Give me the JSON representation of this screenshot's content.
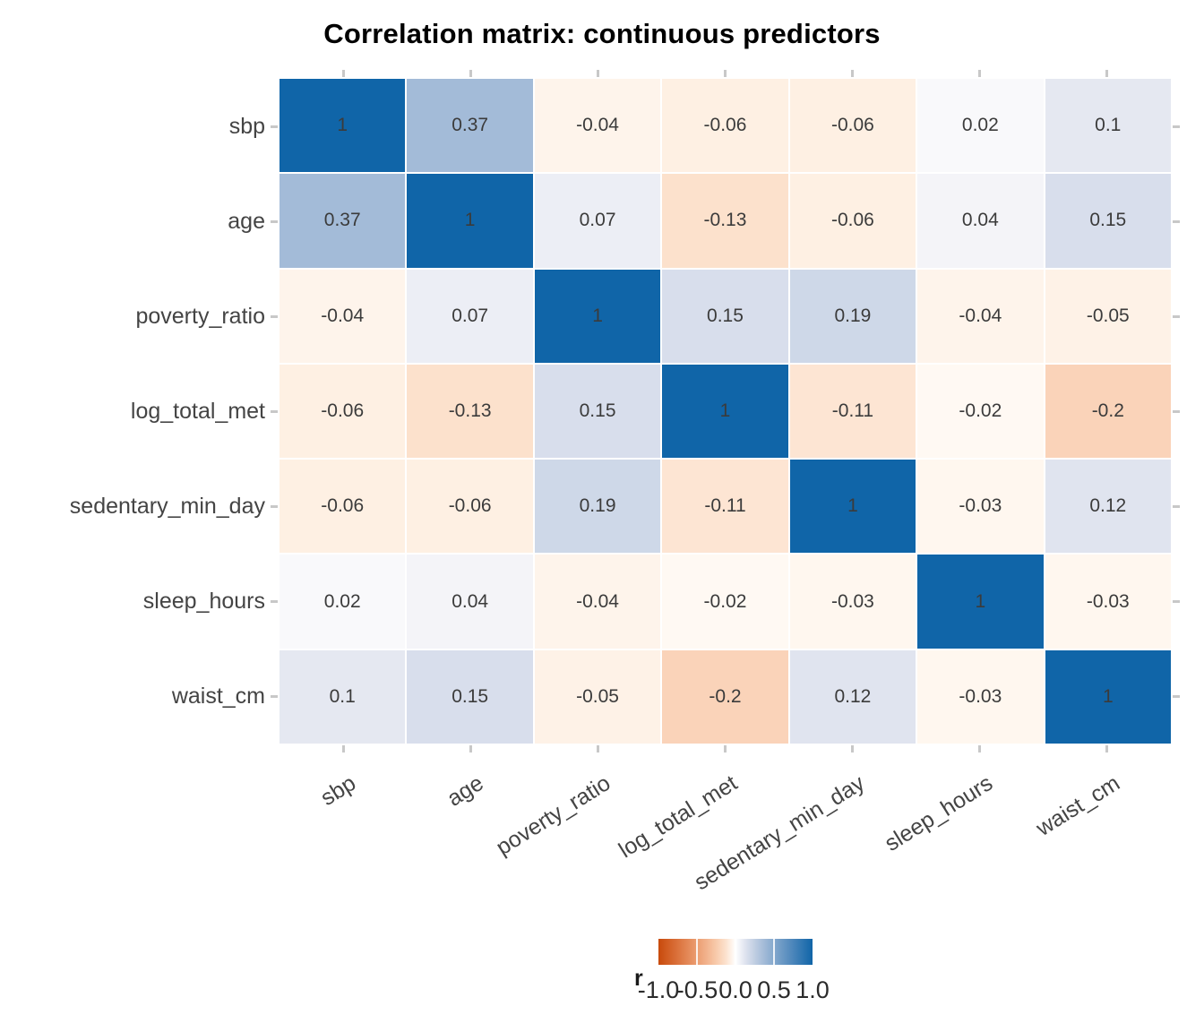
{
  "title": "Correlation matrix: continuous predictors",
  "chart_data": {
    "type": "heatmap",
    "title": "Correlation matrix: continuous predictors",
    "variables": [
      "sbp",
      "age",
      "poverty_ratio",
      "log_total_met",
      "sedentary_min_day",
      "sleep_hours",
      "waist_cm"
    ],
    "matrix": [
      [
        1,
        0.37,
        -0.04,
        -0.06,
        -0.06,
        0.02,
        0.1
      ],
      [
        0.37,
        1,
        0.07,
        -0.13,
        -0.06,
        0.04,
        0.15
      ],
      [
        -0.04,
        0.07,
        1,
        0.15,
        0.19,
        -0.04,
        -0.05
      ],
      [
        -0.06,
        -0.13,
        0.15,
        1,
        -0.11,
        -0.02,
        -0.2
      ],
      [
        -0.06,
        -0.06,
        0.19,
        -0.11,
        1,
        -0.03,
        0.12
      ],
      [
        0.02,
        0.04,
        -0.04,
        -0.02,
        -0.03,
        1,
        -0.03
      ],
      [
        0.1,
        0.15,
        -0.05,
        -0.2,
        0.12,
        -0.03,
        1
      ]
    ],
    "value_range": [
      -1,
      1
    ],
    "legend": {
      "title": "r",
      "tick_labels": [
        "-1.0",
        "-0.5",
        "0.0",
        "0.5",
        "1.0"
      ],
      "tick_values": [
        -1,
        -0.5,
        0,
        0.5,
        1
      ],
      "low_color": "#C84A0C",
      "mid_color": "#FFFFFF",
      "high_color": "#1065A8"
    }
  },
  "colors": {
    "cell_text": "#3B3B3B",
    "axis_text": "#444444",
    "axis_tick": "#C8C8C8",
    "title_text": "#000000"
  }
}
